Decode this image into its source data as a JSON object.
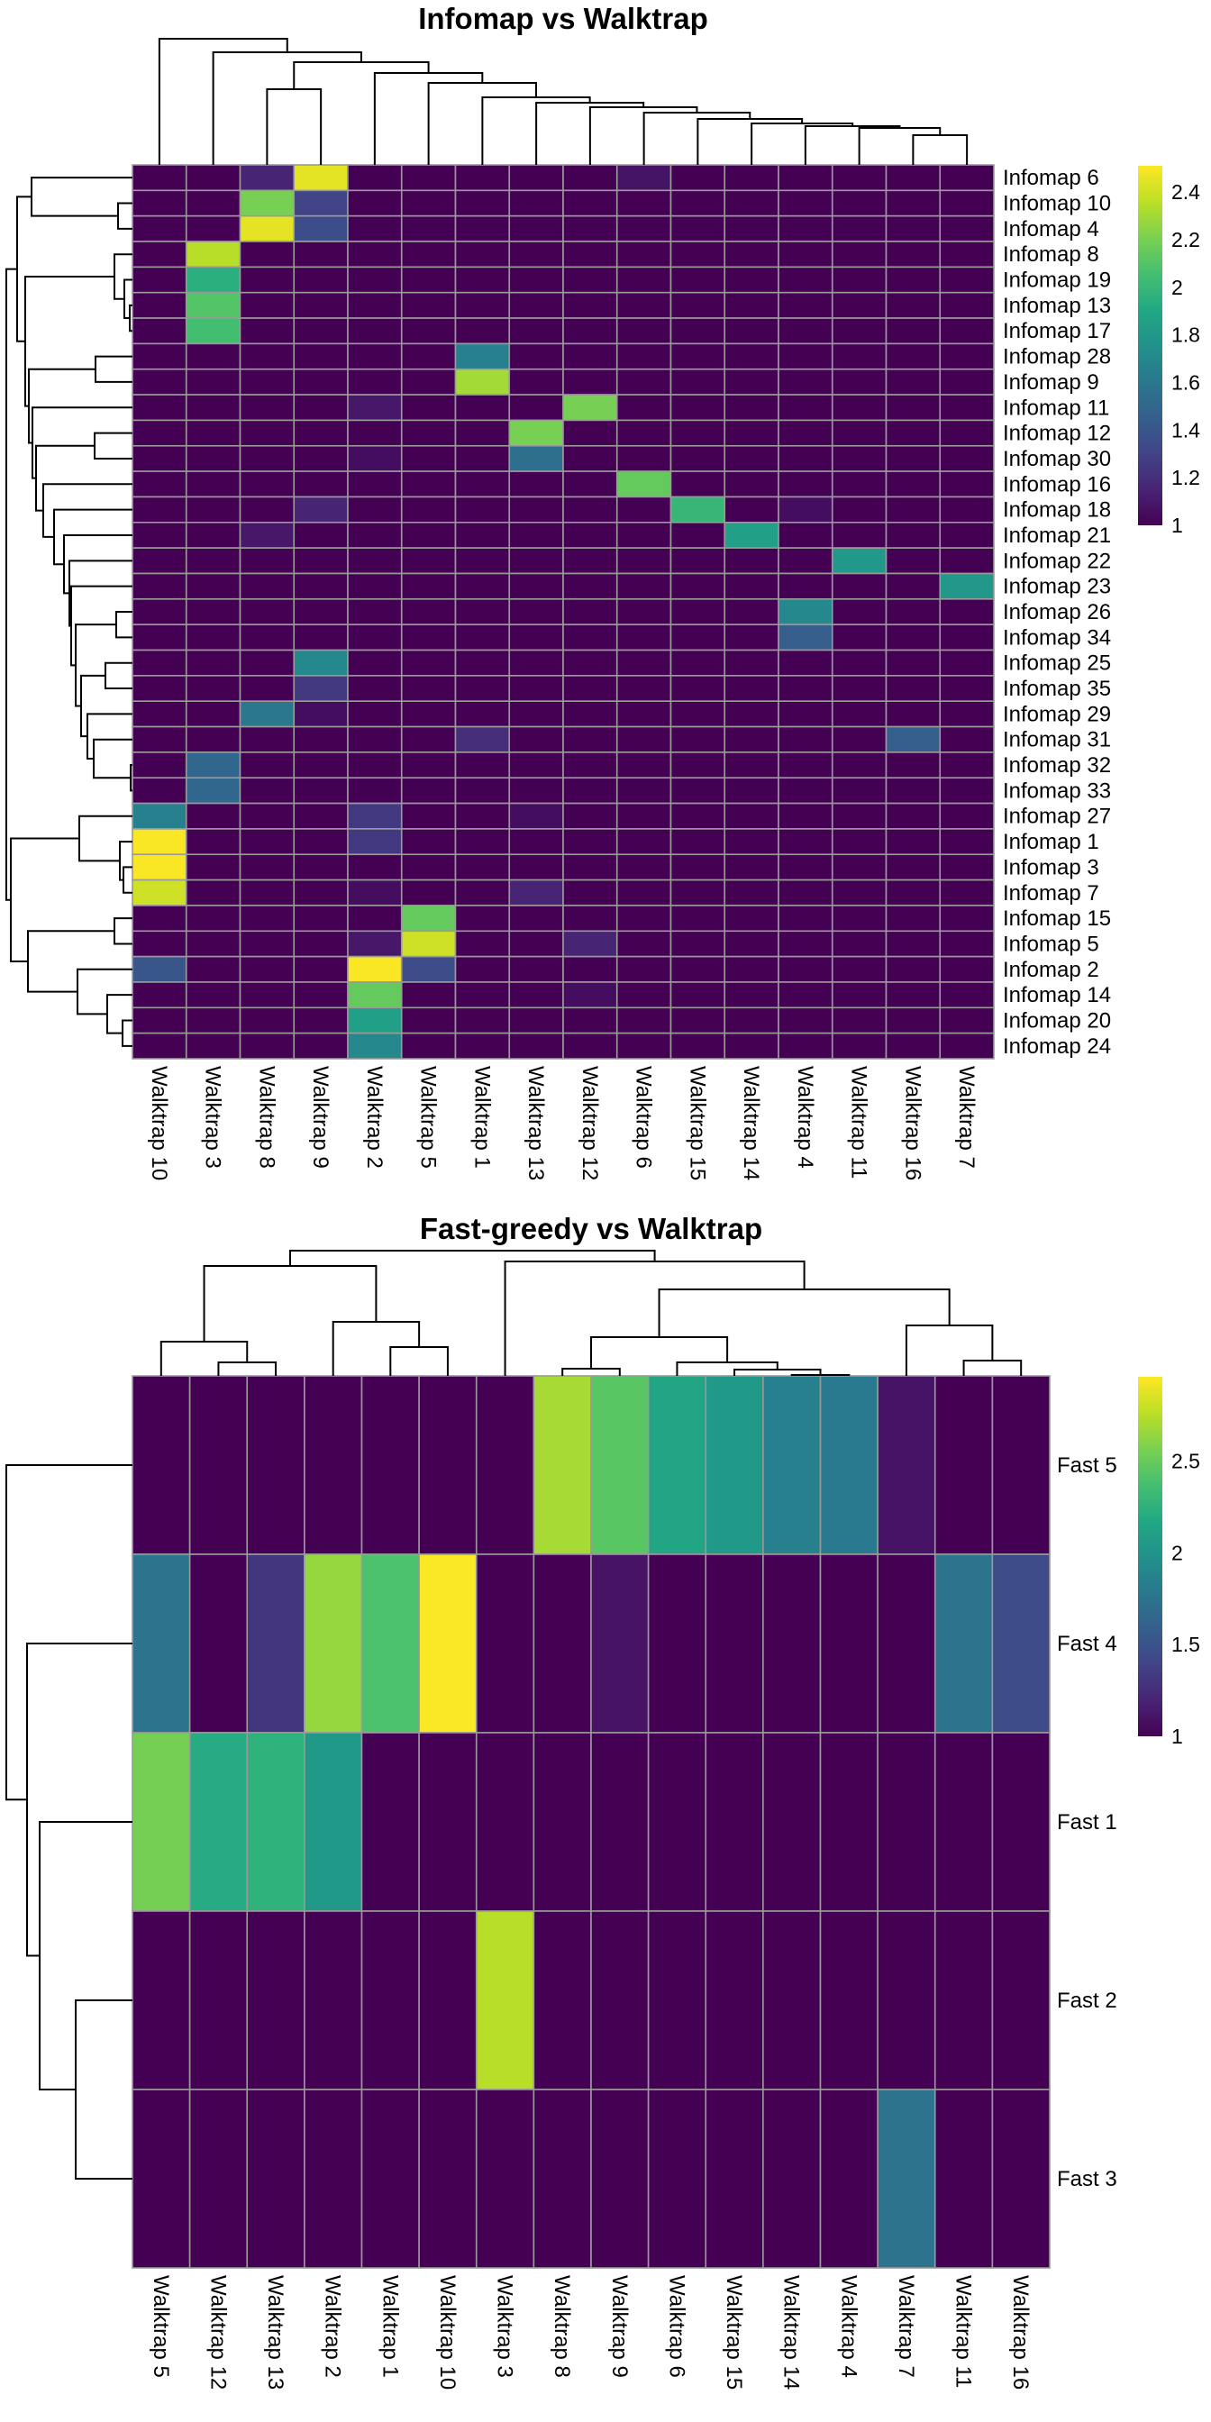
{
  "chart_data": [
    {
      "type": "heatmap",
      "title": "Infomap vs Walktrap",
      "colormap": "viridis",
      "colorbar": {
        "range": [
          1,
          2.51
        ],
        "ticks": [
          "1",
          "1.2",
          "1.4",
          "1.6",
          "1.8",
          "2",
          "2.2",
          "2.4"
        ],
        "tick_values": [
          1,
          1.2,
          1.4,
          1.6,
          1.8,
          2,
          2.2,
          2.4
        ]
      },
      "col_labels": [
        "Walktrap 10",
        "Walktrap 3",
        "Walktrap 8",
        "Walktrap 9",
        "Walktrap 2",
        "Walktrap 5",
        "Walktrap 1",
        "Walktrap 13",
        "Walktrap 12",
        "Walktrap 6",
        "Walktrap 15",
        "Walktrap 14",
        "Walktrap 4",
        "Walktrap 11",
        "Walktrap 16",
        "Walktrap 7"
      ],
      "row_labels": [
        "Infomap 6",
        "Infomap 10",
        "Infomap 4",
        "Infomap 8",
        "Infomap 19",
        "Infomap 13",
        "Infomap 17",
        "Infomap 28",
        "Infomap 9",
        "Infomap 11",
        "Infomap 12",
        "Infomap 30",
        "Infomap 16",
        "Infomap 18",
        "Infomap 21",
        "Infomap 22",
        "Infomap 23",
        "Infomap 26",
        "Infomap 34",
        "Infomap 25",
        "Infomap 35",
        "Infomap 29",
        "Infomap 31",
        "Infomap 32",
        "Infomap 33",
        "Infomap 27",
        "Infomap 1",
        "Infomap 3",
        "Infomap 7",
        "Infomap 15",
        "Infomap 5",
        "Infomap 2",
        "Infomap 14",
        "Infomap 20",
        "Infomap 24"
      ],
      "values": [
        [
          1,
          1,
          1.15,
          2.45,
          1,
          1,
          1,
          1,
          1,
          1.08,
          1,
          1,
          1,
          1,
          1,
          1
        ],
        [
          1,
          1,
          2.2,
          1.3,
          1,
          1,
          1,
          1,
          1,
          1,
          1,
          1,
          1,
          1,
          1,
          1
        ],
        [
          1,
          1,
          2.45,
          1.35,
          1,
          1,
          1,
          1,
          1,
          1,
          1,
          1,
          1,
          1,
          1,
          1
        ],
        [
          1,
          2.35,
          1,
          1,
          1,
          1,
          1,
          1,
          1,
          1,
          1,
          1,
          1,
          1,
          1,
          1
        ],
        [
          1,
          1.95,
          1,
          1,
          1,
          1,
          1,
          1,
          1,
          1,
          1,
          1,
          1,
          1,
          1,
          1
        ],
        [
          1,
          2.1,
          1,
          1,
          1,
          1,
          1,
          1,
          1,
          1,
          1,
          1,
          1,
          1,
          1,
          1
        ],
        [
          1,
          2.05,
          1,
          1,
          1,
          1,
          1,
          1,
          1,
          1,
          1,
          1,
          1,
          1,
          1,
          1
        ],
        [
          1,
          1,
          1,
          1,
          1,
          1,
          1.65,
          1,
          1,
          1,
          1,
          1,
          1,
          1,
          1,
          1
        ],
        [
          1,
          1,
          1,
          1,
          1,
          1,
          2.3,
          1,
          1,
          1,
          1,
          1,
          1,
          1,
          1,
          1
        ],
        [
          1,
          1,
          1,
          1,
          1.1,
          1,
          1,
          1,
          2.2,
          1,
          1,
          1,
          1,
          1,
          1,
          1
        ],
        [
          1,
          1,
          1,
          1,
          1,
          1,
          1,
          2.2,
          1,
          1,
          1,
          1,
          1,
          1,
          1,
          1
        ],
        [
          1,
          1,
          1,
          1,
          1.05,
          1,
          1,
          1.55,
          1,
          1,
          1,
          1,
          1,
          1,
          1,
          1
        ],
        [
          1,
          1,
          1,
          1,
          1,
          1,
          1,
          1,
          1,
          2.15,
          1,
          1,
          1,
          1,
          1,
          1
        ],
        [
          1,
          1,
          1,
          1.15,
          1,
          1,
          1,
          1,
          1,
          1,
          2.0,
          1,
          1.05,
          1,
          1,
          1
        ],
        [
          1,
          1,
          1.1,
          1,
          1,
          1,
          1,
          1,
          1,
          1,
          1,
          1.85,
          1,
          1,
          1,
          1
        ],
        [
          1,
          1,
          1,
          1,
          1,
          1,
          1,
          1,
          1,
          1,
          1,
          1,
          1,
          1.8,
          1,
          1
        ],
        [
          1,
          1,
          1,
          1,
          1,
          1,
          1,
          1,
          1,
          1,
          1,
          1,
          1,
          1,
          1,
          1.8
        ],
        [
          1,
          1,
          1,
          1,
          1,
          1,
          1,
          1,
          1,
          1,
          1,
          1,
          1.7,
          1,
          1,
          1
        ],
        [
          1,
          1,
          1,
          1,
          1,
          1,
          1,
          1,
          1,
          1,
          1,
          1,
          1.45,
          1,
          1,
          1
        ],
        [
          1,
          1,
          1,
          1.7,
          1,
          1,
          1,
          1,
          1,
          1,
          1,
          1,
          1,
          1,
          1,
          1
        ],
        [
          1,
          1,
          1,
          1.25,
          1,
          1,
          1,
          1,
          1,
          1,
          1,
          1,
          1,
          1,
          1,
          1
        ],
        [
          1,
          1,
          1.6,
          1.05,
          1,
          1,
          1,
          1,
          1,
          1,
          1,
          1,
          1,
          1,
          1,
          1
        ],
        [
          1,
          1,
          1,
          1,
          1,
          1,
          1.2,
          1,
          1,
          1,
          1,
          1,
          1,
          1,
          1.45,
          1
        ],
        [
          1,
          1.5,
          1,
          1,
          1,
          1,
          1,
          1,
          1,
          1,
          1,
          1,
          1,
          1,
          1,
          1
        ],
        [
          1,
          1.5,
          1,
          1,
          1,
          1,
          1,
          1,
          1,
          1,
          1,
          1,
          1,
          1,
          1,
          1
        ],
        [
          1.65,
          1,
          1,
          1,
          1.25,
          1,
          1,
          1.05,
          1,
          1,
          1,
          1,
          1,
          1,
          1,
          1
        ],
        [
          2.5,
          1,
          1,
          1,
          1.25,
          1,
          1,
          1,
          1,
          1,
          1,
          1,
          1,
          1,
          1,
          1
        ],
        [
          2.5,
          1,
          1,
          1,
          1,
          1,
          1,
          1,
          1,
          1,
          1,
          1,
          1,
          1,
          1,
          1
        ],
        [
          2.4,
          1,
          1,
          1,
          1.05,
          1,
          1,
          1.15,
          1,
          1,
          1,
          1,
          1,
          1,
          1,
          1
        ],
        [
          1,
          1,
          1,
          1,
          1,
          2.15,
          1,
          1,
          1,
          1,
          1,
          1,
          1,
          1,
          1,
          1
        ],
        [
          1,
          1,
          1,
          1,
          1.1,
          2.4,
          1,
          1,
          1.15,
          1,
          1,
          1,
          1,
          1,
          1,
          1
        ],
        [
          1.4,
          1,
          1,
          1,
          2.5,
          1.35,
          1,
          1,
          1,
          1,
          1,
          1,
          1,
          1,
          1,
          1
        ],
        [
          1,
          1,
          1,
          1,
          2.15,
          1,
          1,
          1,
          1.05,
          1,
          1,
          1,
          1,
          1,
          1,
          1
        ],
        [
          1,
          1,
          1,
          1,
          1.85,
          1,
          1,
          1,
          1,
          1,
          1,
          1,
          1,
          1,
          1,
          1
        ],
        [
          1,
          1,
          1,
          1,
          1.7,
          1,
          1,
          1,
          1,
          1,
          1,
          1,
          1,
          1,
          1,
          1
        ]
      ],
      "row_dendrogram": true,
      "col_dendrogram": true
    },
    {
      "type": "heatmap",
      "title": "Fast-greedy vs Walktrap",
      "colormap": "viridis",
      "colorbar": {
        "range": [
          1,
          2.96
        ],
        "ticks": [
          "1",
          "1.5",
          "2",
          "2.5"
        ],
        "tick_values": [
          1,
          1.5,
          2,
          2.5
        ]
      },
      "col_labels": [
        "Walktrap 5",
        "Walktrap 12",
        "Walktrap 13",
        "Walktrap 2",
        "Walktrap 1",
        "Walktrap 10",
        "Walktrap 3",
        "Walktrap 8",
        "Walktrap 9",
        "Walktrap 6",
        "Walktrap 15",
        "Walktrap 14",
        "Walktrap 4",
        "Walktrap 7",
        "Walktrap 11",
        "Walktrap 16"
      ],
      "row_labels": [
        "Fast 5",
        "Fast 4",
        "Fast 1",
        "Fast 2",
        "Fast 3"
      ],
      "values": [
        [
          1,
          1,
          1,
          1,
          1,
          1,
          1,
          2.7,
          2.45,
          2.15,
          2.05,
          1.85,
          1.8,
          1.1,
          1,
          1
        ],
        [
          1.75,
          1,
          1.3,
          2.65,
          2.4,
          2.95,
          1,
          1,
          1.1,
          1,
          1,
          1,
          1,
          1,
          1.75,
          1.45
        ],
        [
          2.55,
          2.2,
          2.25,
          2.05,
          1,
          1,
          1,
          1,
          1,
          1,
          1,
          1,
          1,
          1,
          1,
          1
        ],
        [
          1,
          1,
          1,
          1,
          1,
          1,
          2.75,
          1,
          1,
          1,
          1,
          1,
          1,
          1,
          1,
          1
        ],
        [
          1,
          1,
          1,
          1,
          1,
          1,
          1,
          1,
          1,
          1,
          1,
          1,
          1,
          1.75,
          1,
          1
        ]
      ],
      "row_dendrogram": true,
      "col_dendrogram": true
    }
  ]
}
